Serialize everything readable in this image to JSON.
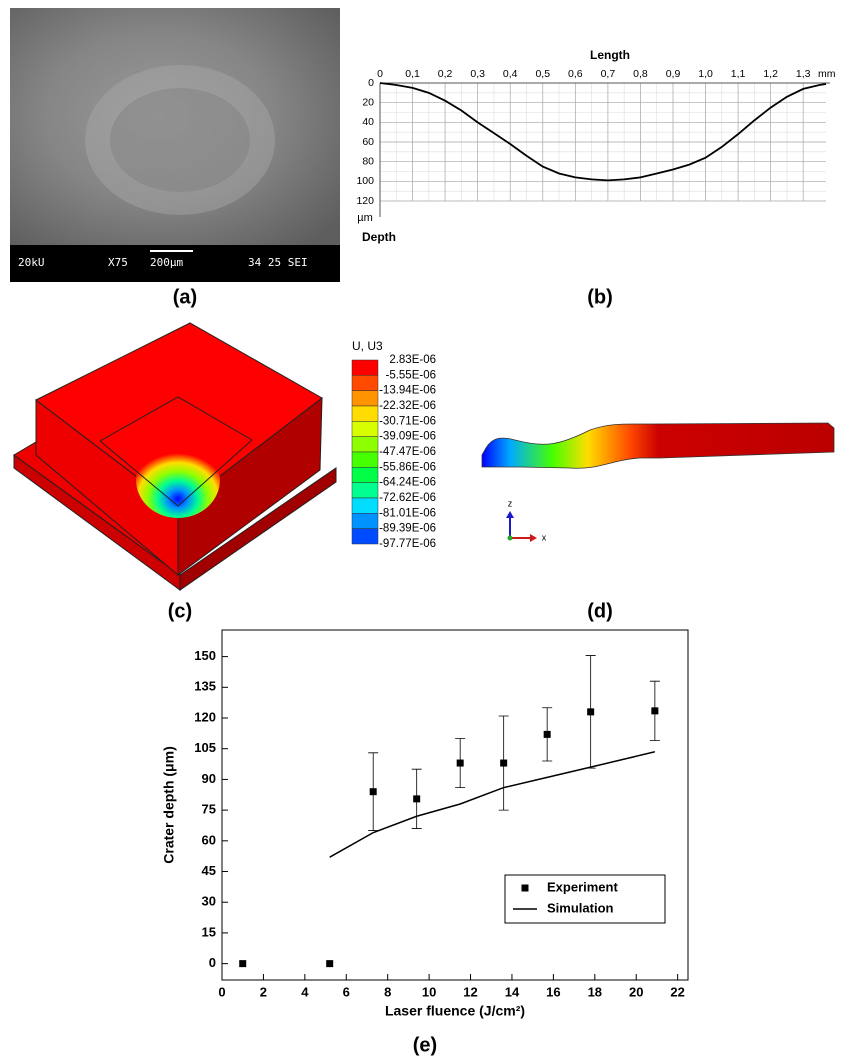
{
  "panel_labels": [
    "(a)",
    "(b)",
    "(c)",
    "(d)",
    "(e)"
  ],
  "sem_info": [
    "20kU",
    "X75",
    "200µm",
    "34 25 SEI"
  ],
  "contour_legend": {
    "title": "U, U3",
    "levels": [
      "2.83E-06",
      "-5.55E-06",
      "-13.94E-06",
      "-22.32E-06",
      "-30.71E-06",
      "-39.09E-06",
      "-47.47E-06",
      "-55.86E-06",
      "-64.24E-06",
      "-72.62E-06",
      "-81.01E-06",
      "-89.39E-06",
      "-97.77E-06"
    ],
    "colors": [
      "#ff0000",
      "#ff4a00",
      "#ff9300",
      "#ffdd00",
      "#d8ff00",
      "#8eff00",
      "#46ff00",
      "#00ff46",
      "#00ff8e",
      "#00ddff",
      "#0093ff",
      "#004aff",
      "#0000ff"
    ]
  },
  "triad": {
    "z": "z",
    "x": "x"
  },
  "chart_data": [
    {
      "type": "line",
      "title": "Length",
      "x_unit": "mm",
      "y_label": "Depth",
      "y_unit": "µm",
      "x": [
        0,
        0.05,
        0.1,
        0.15,
        0.2,
        0.25,
        0.3,
        0.35,
        0.4,
        0.45,
        0.5,
        0.55,
        0.6,
        0.65,
        0.7,
        0.75,
        0.8,
        0.85,
        0.9,
        0.95,
        1.0,
        1.05,
        1.1,
        1.15,
        1.2,
        1.25,
        1.3,
        1.35,
        1.37
      ],
      "y": [
        0,
        2,
        5,
        10,
        18,
        28,
        40,
        51,
        62,
        74,
        85,
        92,
        96,
        98,
        99,
        98,
        96,
        92,
        88,
        83,
        76,
        65,
        52,
        38,
        25,
        14,
        6,
        2,
        1
      ],
      "color": "#000000",
      "xlim": [
        0,
        1.37
      ],
      "ylim": [
        0,
        120
      ],
      "y_inverted": true,
      "grid": true,
      "xticks": [
        0,
        {
          "value": 0.1,
          "label": "0,1"
        },
        {
          "value": 0.2,
          "label": "0,2"
        },
        {
          "value": 0.3,
          "label": "0,3"
        },
        {
          "value": 0.4,
          "label": "0,4"
        },
        {
          "value": 0.5,
          "label": "0,5"
        },
        {
          "value": 0.6,
          "label": "0,6"
        },
        {
          "value": 0.7,
          "label": "0,7"
        },
        {
          "value": 0.8,
          "label": "0,8"
        },
        {
          "value": 0.9,
          "label": "0,9"
        },
        {
          "value": 1.0,
          "label": "1,0"
        },
        {
          "value": 1.1,
          "label": "1,1"
        },
        {
          "value": 1.2,
          "label": "1,2"
        },
        {
          "value": 1.3,
          "label": "1,3"
        }
      ],
      "yticks": [
        0,
        20,
        40,
        60,
        80,
        100,
        120
      ]
    },
    {
      "type": "scatter",
      "x_label": "Laser fluence (J/cm²)",
      "y_label": "Crater depth (μm)",
      "xlim": [
        0,
        22.5
      ],
      "ylim": [
        -8,
        163
      ],
      "xticks": [
        0,
        2,
        4,
        6,
        8,
        10,
        12,
        14,
        16,
        18,
        20,
        22
      ],
      "yticks": [
        0,
        15,
        30,
        45,
        60,
        75,
        90,
        105,
        120,
        135,
        150
      ],
      "legend": "lower right",
      "series": [
        {
          "name": "Experiment",
          "style": "markers",
          "color": "#000000",
          "x": [
            1.0,
            5.2,
            7.3,
            9.4,
            11.5,
            13.6,
            15.7,
            17.8,
            20.9
          ],
          "values": [
            0,
            0,
            84,
            80.5,
            98,
            98,
            112,
            123,
            123.5
          ],
          "errors": [
            null,
            null,
            19,
            14.5,
            12,
            23,
            13,
            27.5,
            14.5
          ]
        },
        {
          "name": "Simulation",
          "style": "line",
          "color": "#000000",
          "x": [
            5.2,
            7.3,
            9.4,
            11.5,
            13.6,
            15.7,
            17.8,
            20.9
          ],
          "values": [
            52,
            64,
            72,
            78,
            86,
            91,
            96,
            103.5
          ]
        }
      ]
    }
  ]
}
